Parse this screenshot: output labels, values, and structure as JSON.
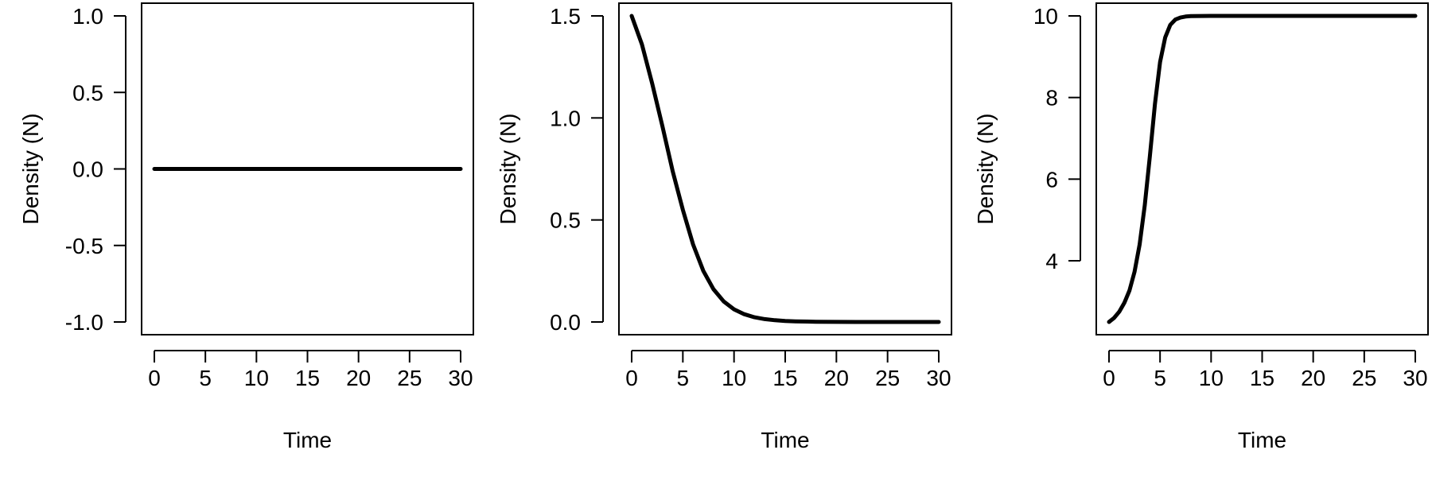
{
  "chart_data": [
    {
      "type": "line",
      "xlabel": "Time",
      "ylabel": "Density (N)",
      "xlim": [
        0,
        30
      ],
      "ylim": [
        -1.0,
        1.0
      ],
      "xticks": [
        0,
        5,
        10,
        15,
        20,
        25,
        30
      ],
      "yticks": [
        -1.0,
        -0.5,
        0.0,
        0.5,
        1.0
      ],
      "ytick_labels": [
        "-1.0",
        "-0.5",
        "0.0",
        "0.5",
        "1.0"
      ],
      "grid": false,
      "series": [
        {
          "color": "#000000",
          "x": [
            0,
            2,
            4,
            6,
            8,
            10,
            12,
            14,
            16,
            18,
            20,
            22,
            24,
            26,
            28,
            30
          ],
          "y": [
            0,
            0,
            0,
            0,
            0,
            0,
            0,
            0,
            0,
            0,
            0,
            0,
            0,
            0,
            0,
            0
          ]
        }
      ]
    },
    {
      "type": "line",
      "xlabel": "Time",
      "ylabel": "Density (N)",
      "xlim": [
        0,
        30
      ],
      "ylim": [
        0.0,
        1.5
      ],
      "xticks": [
        0,
        5,
        10,
        15,
        20,
        25,
        30
      ],
      "yticks": [
        0.0,
        0.5,
        1.0,
        1.5
      ],
      "ytick_labels": [
        "0.0",
        "0.5",
        "1.0",
        "1.5"
      ],
      "grid": false,
      "series": [
        {
          "color": "#000000",
          "x": [
            0,
            1,
            2,
            3,
            4,
            5,
            6,
            7,
            8,
            9,
            10,
            11,
            12,
            13,
            14,
            15,
            16,
            18,
            20,
            22,
            25,
            28,
            30
          ],
          "y": [
            1.5,
            1.36,
            1.17,
            0.96,
            0.74,
            0.55,
            0.38,
            0.25,
            0.16,
            0.1,
            0.062,
            0.038,
            0.023,
            0.014,
            0.0085,
            0.0051,
            0.0031,
            0.0011,
            0.0004,
            0.00015,
            3e-05,
            0.0,
            0.0
          ]
        }
      ]
    },
    {
      "type": "line",
      "xlabel": "Time",
      "ylabel": "Density (N)",
      "xlim": [
        0,
        30
      ],
      "ylim": [
        2.5,
        10.0
      ],
      "xticks": [
        0,
        5,
        10,
        15,
        20,
        25,
        30
      ],
      "yticks": [
        4,
        6,
        8,
        10
      ],
      "ytick_labels": [
        "4",
        "6",
        "8",
        "10"
      ],
      "grid": false,
      "series": [
        {
          "color": "#000000",
          "x": [
            0,
            0.5,
            1,
            1.5,
            2,
            2.5,
            3,
            3.5,
            4,
            4.5,
            5,
            5.5,
            6,
            6.5,
            7,
            7.5,
            8,
            9,
            10,
            12,
            15,
            20,
            25,
            30
          ],
          "y": [
            2.5,
            2.6,
            2.75,
            2.97,
            3.27,
            3.73,
            4.4,
            5.35,
            6.55,
            7.85,
            8.87,
            9.47,
            9.78,
            9.91,
            9.96,
            9.985,
            9.994,
            9.999,
            10.0,
            10.0,
            10.0,
            10.0,
            10.0,
            10.0
          ]
        }
      ]
    }
  ]
}
